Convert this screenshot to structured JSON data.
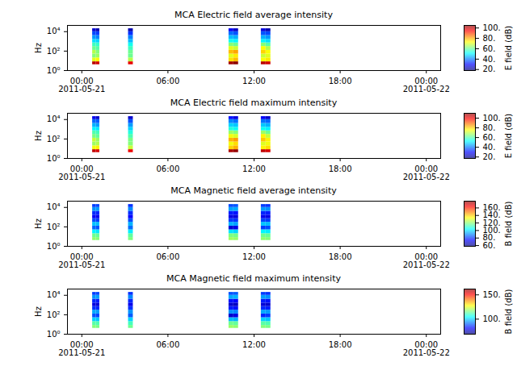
{
  "chart_data": [
    {
      "type": "heatmap",
      "title": "MCA  Electric field average intensity",
      "ylabel": "Hz",
      "log": "y",
      "xlim": [
        "2011-05-20T23:00",
        "2011-05-22T01:00"
      ],
      "xticks": [
        {
          "value": "2011-05-21T00:00",
          "label": "00:00\n2011-05-21"
        },
        {
          "value": "2011-05-21T06:00",
          "label": "06:00"
        },
        {
          "value": "2011-05-21T12:00",
          "label": "12:00"
        },
        {
          "value": "2011-05-21T18:00",
          "label": "18:00"
        },
        {
          "value": "2011-05-22T00:00",
          "label": "00:00\n2011-05-22"
        }
      ],
      "ylim": [
        1,
        44000
      ],
      "yticks": [
        {
          "value": 1,
          "label": "10⁰"
        },
        {
          "value": 100,
          "label": "10²"
        },
        {
          "value": 10000,
          "label": "10⁴"
        }
      ],
      "x_start": [
        "2011-05-21T00:45",
        "2011-05-21T01:00",
        "2011-05-21T03:15",
        "2011-05-21T10:15",
        "2011-05-21T10:35",
        "2011-05-21T12:30",
        "2011-05-21T12:50"
      ],
      "x_end": [
        "2011-05-21T01:00",
        "2011-05-21T01:15",
        "2011-05-21T03:35",
        "2011-05-21T10:35",
        "2011-05-21T10:55",
        "2011-05-21T12:50",
        "2011-05-21T13:10"
      ],
      "y_edges": [
        4,
        8,
        20,
        50,
        120,
        300,
        700,
        1600,
        4000,
        10000,
        20000
      ],
      "values": [
        [
          100,
          70,
          62,
          66,
          60,
          56,
          48,
          42,
          35,
          25
        ],
        [
          98,
          72,
          64,
          62,
          58,
          55,
          47,
          40,
          34,
          22
        ],
        [
          96,
          66,
          60,
          60,
          56,
          52,
          45,
          40,
          33,
          22
        ],
        [
          102,
          75,
          70,
          78,
          70,
          62,
          52,
          45,
          38,
          28
        ],
        [
          104,
          78,
          74,
          80,
          68,
          60,
          50,
          44,
          36,
          24
        ],
        [
          100,
          72,
          68,
          76,
          72,
          62,
          50,
          44,
          36,
          26
        ],
        [
          98,
          74,
          70,
          72,
          66,
          58,
          48,
          42,
          35,
          22
        ]
      ],
      "colorbar": {
        "label": "E field (dB)",
        "lim": [
          18,
          105
        ],
        "ticks": [
          {
            "value": 20,
            "label": "20."
          },
          {
            "value": 40,
            "label": "40."
          },
          {
            "value": 60,
            "label": "60."
          },
          {
            "value": 80,
            "label": "80."
          },
          {
            "value": 100,
            "label": "100."
          }
        ]
      }
    },
    {
      "type": "heatmap",
      "title": "MCA  Electric field maximum intensity",
      "ylabel": "Hz",
      "log": "y",
      "xlim": [
        "2011-05-20T23:00",
        "2011-05-22T01:00"
      ],
      "xticks": [
        {
          "value": "2011-05-21T00:00",
          "label": "00:00\n2011-05-21"
        },
        {
          "value": "2011-05-21T06:00",
          "label": "06:00"
        },
        {
          "value": "2011-05-21T12:00",
          "label": "12:00"
        },
        {
          "value": "2011-05-21T18:00",
          "label": "18:00"
        },
        {
          "value": "2011-05-22T00:00",
          "label": "00:00\n2011-05-22"
        }
      ],
      "ylim": [
        1,
        44000
      ],
      "yticks": [
        {
          "value": 1,
          "label": "10⁰"
        },
        {
          "value": 100,
          "label": "10²"
        },
        {
          "value": 10000,
          "label": "10⁴"
        }
      ],
      "x_start": [
        "2011-05-21T00:45",
        "2011-05-21T01:00",
        "2011-05-21T03:15",
        "2011-05-21T10:15",
        "2011-05-21T10:35",
        "2011-05-21T12:30",
        "2011-05-21T12:50"
      ],
      "x_end": [
        "2011-05-21T01:00",
        "2011-05-21T01:15",
        "2011-05-21T03:35",
        "2011-05-21T10:35",
        "2011-05-21T10:55",
        "2011-05-21T12:50",
        "2011-05-21T13:10"
      ],
      "y_edges": [
        4,
        8,
        20,
        50,
        120,
        300,
        700,
        1600,
        4000,
        10000,
        20000
      ],
      "values": [
        [
          104,
          74,
          66,
          70,
          63,
          59,
          51,
          45,
          38,
          27
        ],
        [
          102,
          76,
          68,
          66,
          61,
          58,
          50,
          43,
          37,
          24
        ],
        [
          100,
          70,
          64,
          63,
          59,
          55,
          48,
          43,
          36,
          24
        ],
        [
          106,
          79,
          74,
          82,
          74,
          66,
          55,
          48,
          41,
          30
        ],
        [
          108,
          82,
          78,
          84,
          72,
          64,
          53,
          47,
          39,
          26
        ],
        [
          104,
          76,
          72,
          80,
          76,
          66,
          53,
          47,
          39,
          28
        ],
        [
          102,
          78,
          74,
          76,
          70,
          62,
          51,
          45,
          38,
          24
        ]
      ],
      "colorbar": {
        "label": "E field (dB)",
        "lim": [
          17,
          110
        ],
        "ticks": [
          {
            "value": 20,
            "label": "20."
          },
          {
            "value": 40,
            "label": "40."
          },
          {
            "value": 60,
            "label": "60."
          },
          {
            "value": 80,
            "label": "80."
          },
          {
            "value": 100,
            "label": "100."
          }
        ]
      }
    },
    {
      "type": "heatmap",
      "title": "MCA  Magnetic field average intensity",
      "ylabel": "Hz",
      "log": "y",
      "xlim": [
        "2011-05-20T23:00",
        "2011-05-22T01:00"
      ],
      "xticks": [
        {
          "value": "2011-05-21T00:00",
          "label": "00:00\n2011-05-21"
        },
        {
          "value": "2011-05-21T06:00",
          "label": "06:00"
        },
        {
          "value": "2011-05-21T12:00",
          "label": "12:00"
        },
        {
          "value": "2011-05-21T18:00",
          "label": "18:00"
        },
        {
          "value": "2011-05-22T00:00",
          "label": "00:00\n2011-05-22"
        }
      ],
      "ylim": [
        1,
        44000
      ],
      "yticks": [
        {
          "value": 1,
          "label": "10⁰"
        },
        {
          "value": 100,
          "label": "10²"
        },
        {
          "value": 10000,
          "label": "10⁴"
        }
      ],
      "x_start": [
        "2011-05-21T00:45",
        "2011-05-21T01:00",
        "2011-05-21T03:15",
        "2011-05-21T10:15",
        "2011-05-21T10:35",
        "2011-05-21T12:30",
        "2011-05-21T12:50"
      ],
      "x_end": [
        "2011-05-21T01:00",
        "2011-05-21T01:15",
        "2011-05-21T03:35",
        "2011-05-21T10:35",
        "2011-05-21T10:55",
        "2011-05-21T12:50",
        "2011-05-21T13:10"
      ],
      "y_edges": [
        4,
        8,
        20,
        50,
        120,
        300,
        700,
        1600,
        4000,
        10000,
        20000
      ],
      "values": [
        [
          120,
          116,
          102,
          85,
          96,
          82,
          72,
          78,
          90,
          80
        ],
        [
          119,
          115,
          100,
          83,
          95,
          80,
          71,
          77,
          91,
          81
        ],
        [
          118,
          114,
          101,
          86,
          94,
          82,
          73,
          78,
          89,
          79
        ],
        [
          122,
          118,
          100,
          68,
          94,
          80,
          70,
          76,
          92,
          82
        ],
        [
          121,
          117,
          98,
          70,
          92,
          79,
          69,
          75,
          93,
          83
        ],
        [
          120,
          116,
          102,
          80,
          96,
          81,
          71,
          77,
          91,
          80
        ],
        [
          119,
          115,
          101,
          82,
          95,
          80,
          70,
          76,
          90,
          79
        ]
      ],
      "colorbar": {
        "label": "B field (dB)",
        "lim": [
          58,
          178
        ],
        "ticks": [
          {
            "value": 60,
            "label": "60."
          },
          {
            "value": 80,
            "label": "80."
          },
          {
            "value": 100,
            "label": "100."
          },
          {
            "value": 120,
            "label": "120."
          },
          {
            "value": 140,
            "label": "140."
          },
          {
            "value": 160,
            "label": "160."
          }
        ]
      }
    },
    {
      "type": "heatmap",
      "title": "MCA  Magnetic field maximum intensity",
      "ylabel": "Hz",
      "log": "y",
      "xlim": [
        "2011-05-20T23:00",
        "2011-05-22T01:00"
      ],
      "xticks": [
        {
          "value": "2011-05-21T00:00",
          "label": "00:00\n2011-05-21"
        },
        {
          "value": "2011-05-21T06:00",
          "label": "06:00"
        },
        {
          "value": "2011-05-21T12:00",
          "label": "12:00"
        },
        {
          "value": "2011-05-21T18:00",
          "label": "18:00"
        },
        {
          "value": "2011-05-22T00:00",
          "label": "00:00\n2011-05-22"
        }
      ],
      "ylim": [
        1,
        44000
      ],
      "yticks": [
        {
          "value": 1,
          "label": "10⁰"
        },
        {
          "value": 100,
          "label": "10²"
        },
        {
          "value": 10000,
          "label": "10⁴"
        }
      ],
      "x_start": [
        "2011-05-21T00:45",
        "2011-05-21T01:00",
        "2011-05-21T03:15",
        "2011-05-21T10:15",
        "2011-05-21T10:35",
        "2011-05-21T12:30",
        "2011-05-21T12:50"
      ],
      "x_end": [
        "2011-05-21T01:00",
        "2011-05-21T01:15",
        "2011-05-21T03:35",
        "2011-05-21T10:35",
        "2011-05-21T10:55",
        "2011-05-21T12:50",
        "2011-05-21T13:10"
      ],
      "y_edges": [
        4,
        8,
        20,
        50,
        120,
        300,
        700,
        1600,
        4000,
        10000,
        20000
      ],
      "values": [
        [
          116,
          112,
          100,
          88,
          96,
          85,
          78,
          84,
          94,
          86
        ],
        [
          115,
          111,
          99,
          87,
          95,
          84,
          77,
          83,
          95,
          87
        ],
        [
          114,
          110,
          100,
          89,
          94,
          85,
          79,
          84,
          93,
          85
        ],
        [
          118,
          114,
          98,
          76,
          94,
          83,
          76,
          82,
          96,
          88
        ],
        [
          117,
          113,
          97,
          78,
          93,
          82,
          75,
          81,
          97,
          89
        ],
        [
          116,
          112,
          100,
          84,
          96,
          84,
          77,
          83,
          95,
          86
        ],
        [
          115,
          111,
          99,
          86,
          95,
          83,
          76,
          82,
          94,
          85
        ]
      ],
      "colorbar": {
        "label": "B field (dB)",
        "lim": [
          69,
          162
        ],
        "ticks": [
          {
            "value": 100,
            "label": "100."
          },
          {
            "value": 150,
            "label": "150."
          }
        ]
      }
    }
  ]
}
